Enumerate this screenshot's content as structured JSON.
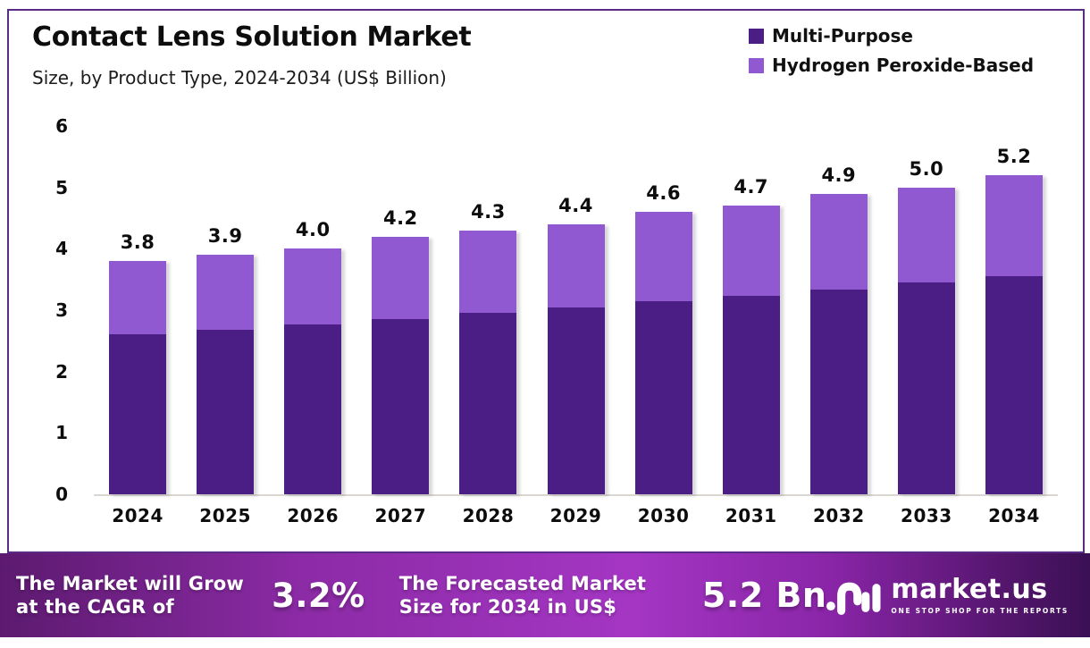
{
  "header": {
    "title": "Contact Lens Solution Market",
    "subtitle": "Size, by Product Type, 2024-2034 (US$ Billion)"
  },
  "chart_data": {
    "type": "bar",
    "stacked": true,
    "title": "Contact Lens Solution Market",
    "subtitle": "Size, by Product Type, 2024-2034 (US$ Billion)",
    "categories": [
      "2024",
      "2025",
      "2026",
      "2027",
      "2028",
      "2029",
      "2030",
      "2031",
      "2032",
      "2033",
      "2034"
    ],
    "series": [
      {
        "name": "Multi-Purpose",
        "color": "#4B1E86",
        "values": [
          2.6,
          2.68,
          2.77,
          2.86,
          2.95,
          3.04,
          3.14,
          3.24,
          3.34,
          3.45,
          3.56
        ]
      },
      {
        "name": "Hydrogen Peroxide-Based",
        "color": "#9159D1",
        "values": [
          1.2,
          1.22,
          1.23,
          1.34,
          1.35,
          1.36,
          1.46,
          1.46,
          1.56,
          1.55,
          1.64
        ]
      }
    ],
    "total_labels": [
      "3.8",
      "3.9",
      "4.0",
      "4.2",
      "4.3",
      "4.4",
      "4.6",
      "4.7",
      "4.9",
      "5.0",
      "5.2"
    ],
    "ylabel": "",
    "xlabel": "",
    "ylim": [
      0,
      6
    ],
    "yticks": [
      0,
      1,
      2,
      3,
      4,
      5,
      6
    ],
    "grid": false,
    "legend_position": "top-right"
  },
  "colors": {
    "multi_purpose": "#4B1E86",
    "hydrogen_peroxide": "#9159D1",
    "frame_border": "#5B2C87",
    "banner_gradient": [
      "#5C1A6F",
      "#A436C3",
      "#3B1054"
    ]
  },
  "banner": {
    "cagr_label": "The Market will Grow at the CAGR of",
    "cagr_value": "3.2%",
    "forecast_label": "The Forecasted Market Size for 2034 in US$",
    "forecast_value": "5.2 Bn",
    "logo_text": "market.us",
    "logo_tagline": "ONE STOP SHOP FOR THE REPORTS"
  }
}
